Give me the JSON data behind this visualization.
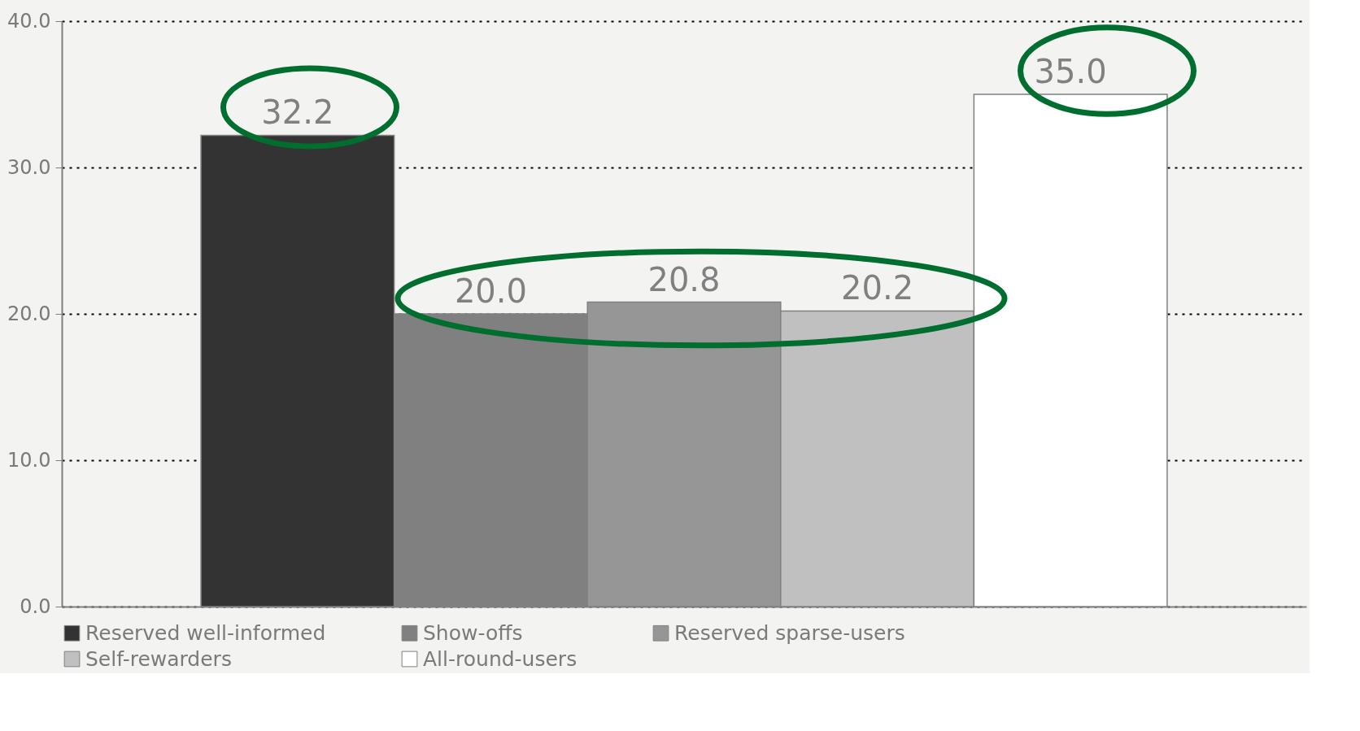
{
  "chart_data": {
    "type": "bar",
    "categories": [
      null
    ],
    "series": [
      {
        "name": "Reserved well-informed",
        "color": "#333333",
        "values": [
          32.2
        ],
        "value_labels": [
          "32.2"
        ]
      },
      {
        "name": "Show-offs",
        "color": "#808080",
        "values": [
          20.0
        ],
        "value_labels": [
          "20.0"
        ]
      },
      {
        "name": "Reserved sparse-users",
        "color": "#969696",
        "values": [
          20.8
        ],
        "value_labels": [
          "20.8"
        ]
      },
      {
        "name": "Self-rewarders",
        "color": "#c0c0c0",
        "values": [
          20.2
        ],
        "value_labels": [
          "20.2"
        ]
      },
      {
        "name": "All-round-users",
        "color": "#ffffff",
        "values": [
          35.0
        ],
        "value_labels": [
          "35.0"
        ]
      }
    ],
    "ylim": [
      0,
      40
    ],
    "yticks": [
      {
        "value": 0,
        "label": "0.0"
      },
      {
        "value": 10,
        "label": "10.0"
      },
      {
        "value": 20,
        "label": "20.0"
      },
      {
        "value": 30,
        "label": "30.0"
      },
      {
        "value": 40,
        "label": "40.0"
      }
    ],
    "grid": "y",
    "legend": "bottom",
    "tick_labels": "y"
  }
}
